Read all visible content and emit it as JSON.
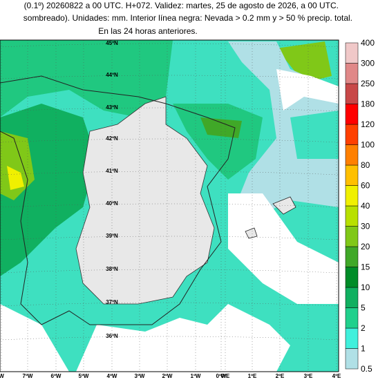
{
  "header": {
    "lines": [
      "(0.1º) 20260822 a 00 UTC. H+072. Validez: martes, 25 de agosto de 2026, a 00 UTC.",
      "sombreado). Unidades: mm. Interior línea negra: Nevada > 0.2 mm y > 50 % precip. total.",
      "En las 24 horas anteriores."
    ]
  },
  "latitude_labels": [
    "45ºN",
    "44ºN",
    "43ºN",
    "42ºN",
    "41ºN",
    "40ºN",
    "39ºN",
    "38ºN",
    "37ºN",
    "36ºN"
  ],
  "longitude_labels": [
    "W",
    "7ºW",
    "6ºW",
    "5ºW",
    "4ºW",
    "3ºW",
    "2ºW",
    "1ºW",
    "0ºW",
    "0ºE",
    "1ºE",
    "2ºE",
    "3ºE",
    "4ºE"
  ],
  "legend": {
    "labels": [
      0.5,
      1,
      2,
      5,
      10,
      15,
      20,
      30,
      40,
      60,
      80,
      100,
      120,
      180,
      250,
      300,
      400
    ],
    "colors": [
      "#b0e0e6",
      "#40f0dc",
      "#20d08c",
      "#10b060",
      "#008c28",
      "#40a828",
      "#80c818",
      "#b8e000",
      "#f0f000",
      "#ffc000",
      "#ff8000",
      "#ff4000",
      "#ff0000",
      "#c84848",
      "#e08888",
      "#f0c8c8"
    ]
  }
}
